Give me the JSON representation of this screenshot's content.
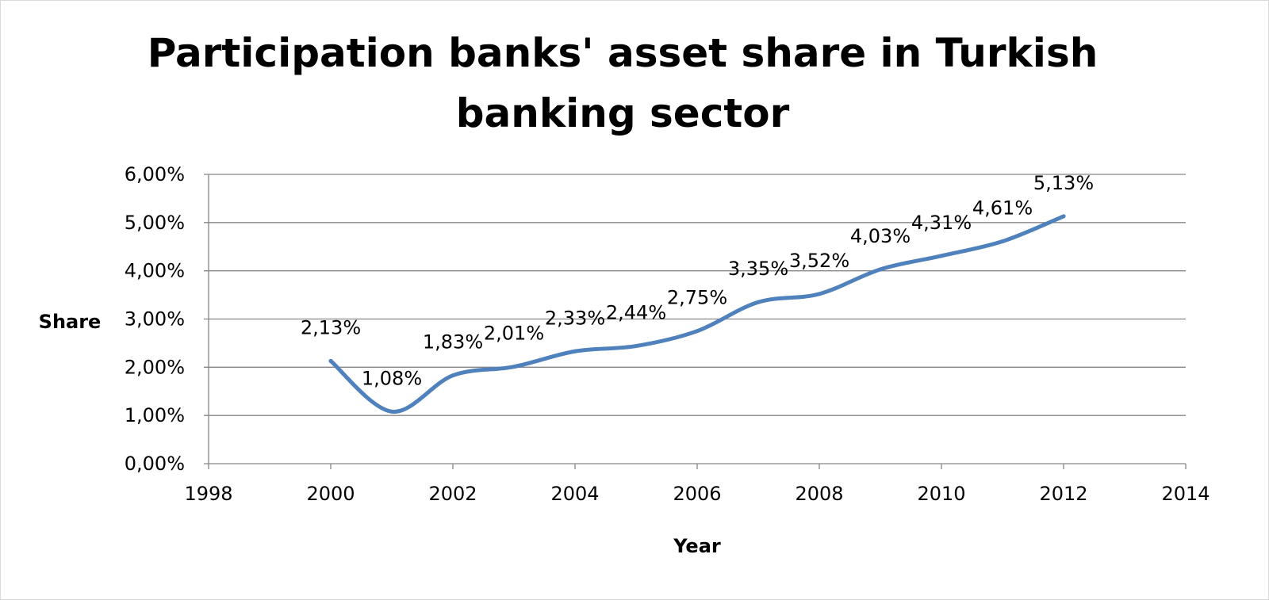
{
  "chart_data": {
    "type": "line",
    "title_lines": [
      "Participation banks' asset share in Turkish",
      "banking sector"
    ],
    "xlabel": "Year",
    "ylabel": "Share",
    "xlim": [
      1998,
      2014
    ],
    "ylim": [
      0,
      0.06
    ],
    "x_ticks": [
      1998,
      2000,
      2002,
      2004,
      2006,
      2008,
      2010,
      2012,
      2014
    ],
    "x_tick_labels": [
      "1998",
      "2000",
      "2002",
      "2004",
      "2006",
      "2008",
      "2010",
      "2012",
      "2014"
    ],
    "y_ticks": [
      0,
      0.01,
      0.02,
      0.03,
      0.04,
      0.05,
      0.06
    ],
    "y_tick_labels": [
      "0,00%",
      "1,00%",
      "2,00%",
      "3,00%",
      "4,00%",
      "5,00%",
      "6,00%"
    ],
    "grid": "horizontal",
    "smooth": true,
    "series": [
      {
        "color": "#4f81bd",
        "x": [
          2000,
          2001,
          2002,
          2003,
          2004,
          2005,
          2006,
          2007,
          2008,
          2009,
          2010,
          2011,
          2012
        ],
        "values": [
          0.0213,
          0.0108,
          0.0183,
          0.0201,
          0.0233,
          0.0244,
          0.0275,
          0.0335,
          0.0352,
          0.0403,
          0.0431,
          0.0461,
          0.0513
        ],
        "data_labels": [
          "2,13%",
          "1,08%",
          "1,83%",
          "2,01%",
          "2,33%",
          "2,44%",
          "2,75%",
          "3,35%",
          "3,52%",
          "4,03%",
          "4,31%",
          "4,61%",
          "5,13%"
        ]
      }
    ]
  }
}
